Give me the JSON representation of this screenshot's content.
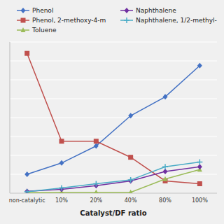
{
  "chart_data": {
    "type": "line",
    "xlabel": "Catalyst/DF ratio",
    "categories": [
      "non-catalytic",
      "10%",
      "20%",
      "40%",
      "80%",
      "100%"
    ],
    "series": [
      {
        "name": "Phenol",
        "color": "#4472C4",
        "marker": "diamond",
        "values": [
          2.0,
          3.2,
          5.0,
          8.2,
          10.2,
          13.5
        ]
      },
      {
        "name": "Phenol, 2-methoxy-4-m",
        "color": "#C0504D",
        "marker": "square",
        "values": [
          14.8,
          5.5,
          5.5,
          3.8,
          1.3,
          1.0
        ]
      },
      {
        "name": "Toluene",
        "color": "#9BBB59",
        "marker": "triangle",
        "values": [
          0.05,
          0.1,
          0.1,
          0.1,
          1.5,
          2.5
        ]
      },
      {
        "name": "Naphthalene",
        "color": "#7030A0",
        "marker": "diamond",
        "values": [
          0.2,
          0.4,
          0.8,
          1.3,
          2.3,
          2.8
        ]
      },
      {
        "name": "Naphthalene, 1/2-methyl-",
        "color": "#4BACC6",
        "marker": "plus",
        "values": [
          0.15,
          0.55,
          1.0,
          1.4,
          2.8,
          3.3
        ]
      }
    ],
    "ylim": [
      0,
      16
    ],
    "yticks": [
      0,
      2,
      4,
      6,
      8,
      10,
      12,
      14,
      16
    ],
    "grid": true,
    "legend": "top",
    "tick_labels": "x"
  }
}
